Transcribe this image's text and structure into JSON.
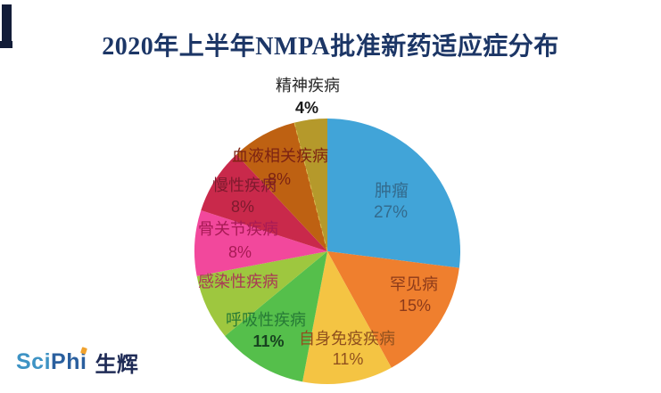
{
  "page": {
    "title": "2020年上半年NMPA批准新药适应症分布",
    "title_color": "#1C3666",
    "accent_bar_color": "#121C38",
    "background": "#FFFFFF"
  },
  "logo": {
    "latin": "SciPhi",
    "cjk": "生辉",
    "latin_light_color": "#3E93C4",
    "latin_dark_color": "#2A5F9E",
    "accent_color": "#F0A22E",
    "cjk_color": "#1F2B56"
  },
  "chart_data": {
    "type": "pie",
    "title": "2020年上半年NMPA批准新药适应症分布",
    "legend_position": "none",
    "data_labels": "inside: category name + percent (精神疾病 labeled outside top; 感染性疾病 percent not displayed)",
    "start_angle_deg": 0,
    "direction": "clockwise",
    "slices": [
      {
        "label": "肿瘤",
        "value": 27,
        "pct_label": "27%",
        "color": "#41A4D8",
        "label_color": "#336B8E"
      },
      {
        "label": "罕见病",
        "value": 15,
        "pct_label": "15%",
        "color": "#EF7F2E",
        "label_color": "#8C3A1A"
      },
      {
        "label": "自身免疫疾病",
        "value": 11,
        "pct_label": "11%",
        "color": "#F4C443",
        "label_color": "#90501E"
      },
      {
        "label": "呼吸性疾病",
        "value": 11,
        "pct_label": "11%",
        "color": "#55BF4B",
        "label_color": "#267A36",
        "pct_color": "#17421F",
        "pct_bold": true
      },
      {
        "label": "感染性疾病",
        "value": 8,
        "pct_label": "",
        "color": "#9EC73F",
        "label_color": "#A93A55"
      },
      {
        "label": "骨关节疾病",
        "value": 8,
        "pct_label": "8%",
        "color": "#F2489C",
        "label_color": "#A81A55"
      },
      {
        "label": "慢性疾病",
        "value": 8,
        "pct_label": "8%",
        "color": "#C9294B",
        "label_color": "#7E1A2E"
      },
      {
        "label": "血液相关疾病",
        "value": 8,
        "pct_label": "8%",
        "color": "#BE6112",
        "label_color": "#7C2312"
      },
      {
        "label": "精神疾病",
        "value": 4,
        "pct_label": "4%",
        "color": "#B5992B",
        "label_color": "#262626",
        "pct_color": "#1A1A1A",
        "pct_bold": true,
        "label_outside": true
      }
    ]
  }
}
